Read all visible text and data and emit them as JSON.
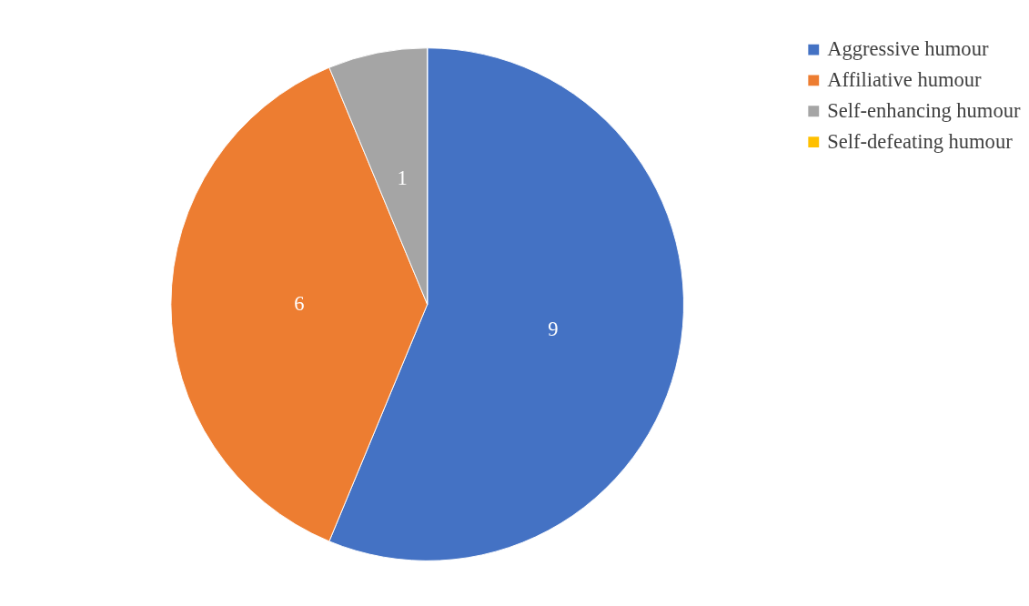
{
  "chart_data": {
    "type": "pie",
    "categories": [
      "Aggressive humour",
      "Affiliative humour",
      "Self-enhancing humour",
      "Self-defeating humour"
    ],
    "values": [
      9,
      6,
      1,
      0
    ],
    "colors": [
      "#4472c4",
      "#ed7d31",
      "#a5a5a5",
      "#ffc000"
    ],
    "value_labels": [
      "9",
      "6",
      "1",
      null
    ],
    "legend": "right"
  }
}
